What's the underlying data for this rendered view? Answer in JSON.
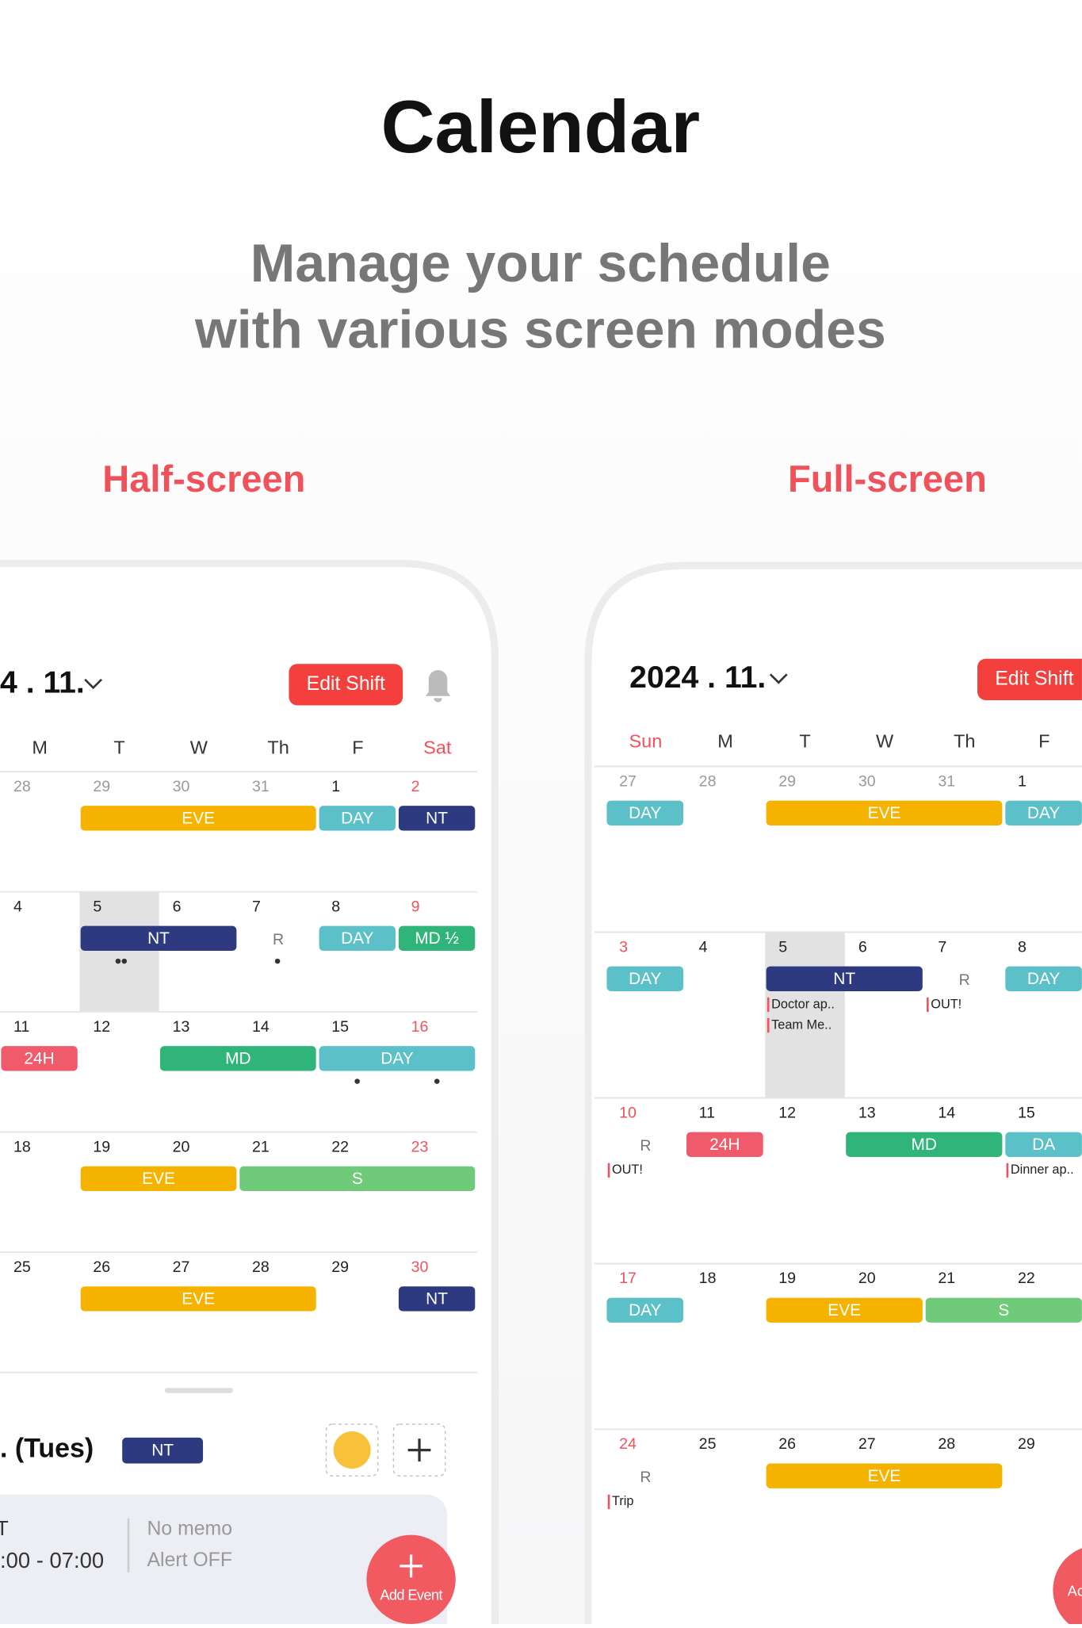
{
  "header": {
    "title": "Calendar",
    "subtitle": [
      "Manage your schedule",
      "with various screen modes"
    ],
    "left_label": "Half-screen",
    "right_label": "Full-screen"
  },
  "half": {
    "month": "4 . 11.",
    "edit": "Edit Shift",
    "weekdays": [
      "M",
      "T",
      "W",
      "Th",
      "F",
      "Sat"
    ],
    "red_col": 5,
    "selected": {
      "row": 1,
      "col": 1
    },
    "rows": [
      {
        "days": [
          "28",
          "29",
          "30",
          "31",
          "1",
          "2"
        ],
        "muted": 4,
        "shifts": [
          {
            "label": "EVE",
            "start": 1,
            "span": 3,
            "color": "#f5b300"
          },
          {
            "label": "DAY",
            "start": 4,
            "span": 1,
            "color": "#5bc0c8"
          },
          {
            "label": "NT",
            "start": 5,
            "span": 1,
            "color": "#2e3a80"
          }
        ],
        "notes": []
      },
      {
        "days": [
          "4",
          "5",
          "6",
          "7",
          "8",
          "9"
        ],
        "muted": 0,
        "shifts": [
          {
            "label": "NT",
            "start": 1,
            "span": 2,
            "color": "#2e3a80"
          },
          {
            "label": "DAY",
            "start": 4,
            "span": 1,
            "color": "#5bc0c8"
          },
          {
            "label": "MD ½",
            "start": 5,
            "span": 1,
            "color": "#2fb57a"
          }
        ],
        "notes": [
          {
            "col": 3,
            "kind": "r",
            "text": "R"
          }
        ]
      },
      {
        "days": [
          "11",
          "12",
          "13",
          "14",
          "15",
          "16"
        ],
        "muted": 0,
        "shifts": [
          {
            "label": "24H",
            "start": 0,
            "span": 1,
            "color": "#ef5b6b"
          },
          {
            "label": "MD",
            "start": 2,
            "span": 2,
            "color": "#2fb57a"
          },
          {
            "label": "DAY",
            "start": 4,
            "span": 2,
            "color": "#5bc0c8"
          }
        ],
        "notes": []
      },
      {
        "days": [
          "18",
          "19",
          "20",
          "21",
          "22",
          "23"
        ],
        "muted": 0,
        "shifts": [
          {
            "label": "EVE",
            "start": 1,
            "span": 2,
            "color": "#f5b300"
          },
          {
            "label": "S",
            "start": 3,
            "span": 3,
            "color": "#6fcb79"
          }
        ],
        "notes": []
      },
      {
        "days": [
          "25",
          "26",
          "27",
          "28",
          "29",
          "30"
        ],
        "muted": 0,
        "shifts": [
          {
            "label": "EVE",
            "start": 1,
            "span": 3,
            "color": "#f5b300"
          },
          {
            "label": "NT",
            "start": 5,
            "span": 1,
            "color": "#2e3a80"
          }
        ],
        "notes": []
      }
    ],
    "detail": {
      "date": ". (Tues)",
      "shift": "NT",
      "shift_name": "T",
      "time": ":00 - 07:00",
      "memo": "No memo",
      "alert": "Alert OFF",
      "fab": "Add Event"
    }
  },
  "full": {
    "month": "2024 . 11.",
    "edit": "Edit Shift",
    "weekdays": [
      "Sun",
      "M",
      "T",
      "W",
      "Th",
      "F"
    ],
    "red_col": 0,
    "selected": {
      "row": 1,
      "col": 2
    },
    "rows": [
      {
        "days": [
          "27",
          "28",
          "29",
          "30",
          "31",
          "1"
        ],
        "muted": 5,
        "shifts": [
          {
            "label": "DAY",
            "start": 0,
            "span": 1,
            "color": "#5bc0c8"
          },
          {
            "label": "EVE",
            "start": 2,
            "span": 3,
            "color": "#f5b300"
          },
          {
            "label": "DAY",
            "start": 5,
            "span": 1,
            "color": "#5bc0c8"
          }
        ],
        "notes": []
      },
      {
        "days": [
          "3",
          "4",
          "5",
          "6",
          "7",
          "8"
        ],
        "muted": 0,
        "shifts": [
          {
            "label": "DAY",
            "start": 0,
            "span": 1,
            "color": "#5bc0c8"
          },
          {
            "label": "NT",
            "start": 2,
            "span": 2,
            "color": "#2e3a80"
          },
          {
            "label": "DAY",
            "start": 5,
            "span": 1,
            "color": "#5bc0c8"
          }
        ],
        "notes": [
          {
            "col": 4,
            "kind": "r",
            "text": "R"
          },
          {
            "col": 2,
            "kind": "memo",
            "text": "Doctor ap.."
          },
          {
            "col": 2,
            "kind": "memo",
            "text": "Team Me.."
          },
          {
            "col": 4,
            "kind": "memo",
            "text": "OUT!"
          }
        ]
      },
      {
        "days": [
          "10",
          "11",
          "12",
          "13",
          "14",
          "15"
        ],
        "muted": 0,
        "shifts": [
          {
            "label": "24H",
            "start": 1,
            "span": 1,
            "color": "#ef5b6b"
          },
          {
            "label": "MD",
            "start": 3,
            "span": 2,
            "color": "#2fb57a"
          },
          {
            "label": "DA",
            "start": 5,
            "span": 1,
            "color": "#5bc0c8"
          }
        ],
        "notes": [
          {
            "col": 0,
            "kind": "r",
            "text": "R"
          },
          {
            "col": 0,
            "kind": "memo",
            "text": "OUT!"
          },
          {
            "col": 5,
            "kind": "memo",
            "text": "Dinner ap.."
          }
        ]
      },
      {
        "days": [
          "17",
          "18",
          "19",
          "20",
          "21",
          "22"
        ],
        "muted": 0,
        "shifts": [
          {
            "label": "DAY",
            "start": 0,
            "span": 1,
            "color": "#5bc0c8"
          },
          {
            "label": "EVE",
            "start": 2,
            "span": 2,
            "color": "#f5b300"
          },
          {
            "label": "S",
            "start": 4,
            "span": 2,
            "color": "#6fcb79"
          }
        ],
        "notes": []
      },
      {
        "days": [
          "24",
          "25",
          "26",
          "27",
          "28",
          "29"
        ],
        "muted": 0,
        "shifts": [
          {
            "label": "EVE",
            "start": 2,
            "span": 3,
            "color": "#f5b300"
          }
        ],
        "notes": [
          {
            "col": 0,
            "kind": "r",
            "text": "R"
          },
          {
            "col": 0,
            "kind": "memo",
            "text": "Trip"
          }
        ]
      }
    ],
    "fab": "Ac"
  }
}
